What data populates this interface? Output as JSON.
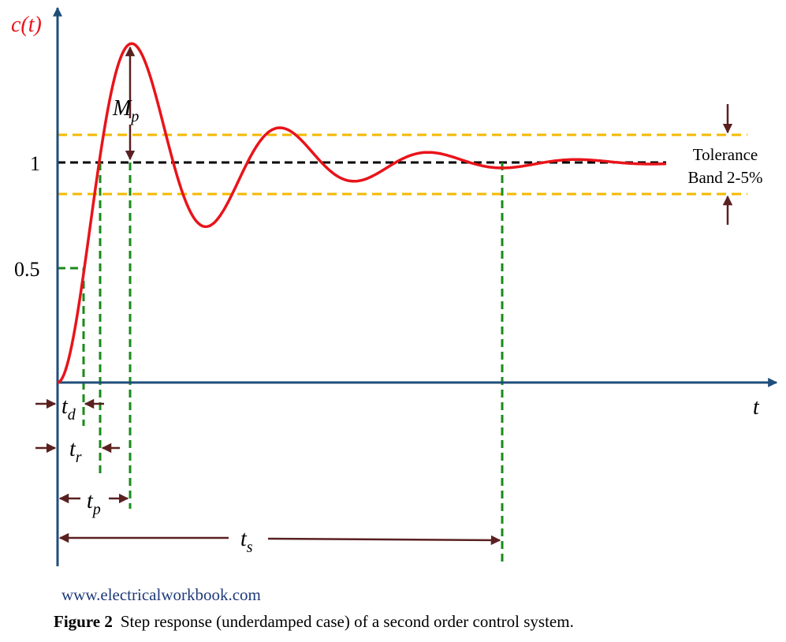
{
  "y_axis_label": "c(t)",
  "x_axis_label": "t",
  "level_one": "1",
  "level_half": "0.5",
  "tolerance": [
    "Tolerance",
    "Band 2-5%"
  ],
  "peak_overshoot": {
    "symbol": "M",
    "subscript": "p"
  },
  "delay_time": {
    "symbol": "t",
    "subscript": "d"
  },
  "rise_time": {
    "symbol": "t",
    "subscript": "r"
  },
  "peak_time": {
    "symbol": "t",
    "subscript": "p"
  },
  "settling_time": {
    "symbol": "t",
    "subscript": "s"
  },
  "source": "www.electricalworkbook.com",
  "caption": {
    "label": "Figure 2",
    "text": "Step response (underdamped case) of a second order control system."
  }
}
